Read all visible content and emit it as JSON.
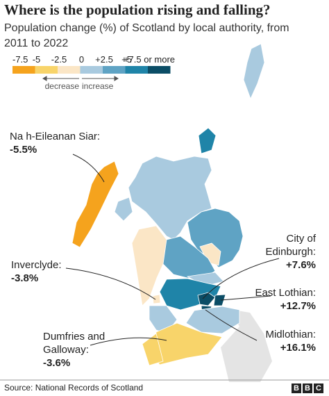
{
  "header": {
    "title": "Where is the population rising and falling?",
    "subtitle": "Population change (%) of Scotland by local authority, from 2011 to 2022"
  },
  "legend": {
    "items": [
      {
        "label": "-7.5",
        "color": "#f5a31d"
      },
      {
        "label": "-5",
        "color": "#f8d46a"
      },
      {
        "label": "-2.5",
        "color": "#fbe6c6"
      },
      {
        "label": "0",
        "color": "#a9cadf"
      },
      {
        "label": "+2.5",
        "color": "#5fa3c4"
      },
      {
        "label": "+5",
        "color": "#1f84a8"
      },
      {
        "label": "+7.5 or more",
        "color": "#0b4d66"
      }
    ],
    "decrease": "decrease",
    "increase": "increase"
  },
  "callouts": [
    {
      "name_lines": [
        "Na h-Eileanan Siar:"
      ],
      "value": "-5.5%"
    },
    {
      "name_lines": [
        "City of",
        "Edinburgh:"
      ],
      "value": "+7.6%"
    },
    {
      "name_lines": [
        "Inverclyde:"
      ],
      "value": "-3.8%"
    },
    {
      "name_lines": [
        "East Lothian:"
      ],
      "value": "+12.7%"
    },
    {
      "name_lines": [
        "Dumfries and",
        "Galloway:"
      ],
      "value": "-3.6%"
    },
    {
      "name_lines": [
        "Midlothian:"
      ],
      "value": "+16.1%"
    }
  ],
  "footer": {
    "source": "Source: National Records of Scotland",
    "logo": [
      "B",
      "B",
      "C"
    ]
  }
}
